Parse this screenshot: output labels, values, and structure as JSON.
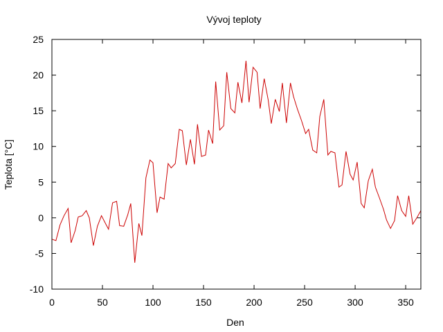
{
  "chart_data": {
    "type": "line",
    "title": "Vývoj teploty",
    "xlabel": "Den",
    "ylabel": "Teplota [°C]",
    "xlim": [
      0,
      365
    ],
    "ylim": [
      -10,
      25
    ],
    "x_ticks": [
      0,
      50,
      100,
      150,
      200,
      250,
      300,
      350
    ],
    "y_ticks": [
      -10,
      -5,
      0,
      5,
      10,
      15,
      20,
      25
    ],
    "grid": false,
    "legend": "none",
    "series": [
      {
        "color": "#cc0000",
        "x": [
          0,
          4,
          8,
          12,
          16,
          19,
          23,
          26,
          30,
          34,
          37,
          41,
          45,
          49,
          53,
          56,
          60,
          64,
          67,
          71,
          75,
          78,
          82,
          86,
          89,
          93,
          97,
          100,
          104,
          107,
          111,
          115,
          118,
          122,
          126,
          129,
          133,
          137,
          141,
          144,
          148,
          152,
          155,
          159,
          162,
          166,
          170,
          173,
          177,
          181,
          184,
          188,
          192,
          195,
          199,
          203,
          206,
          210,
          214,
          217,
          221,
          225,
          228,
          232,
          236,
          239,
          243,
          247,
          251,
          254,
          258,
          262,
          265,
          269,
          273,
          276,
          280,
          284,
          287,
          291,
          295,
          298,
          302,
          306,
          309,
          313,
          317,
          320,
          324,
          328,
          331,
          335,
          339,
          342,
          346,
          350,
          353,
          357,
          361,
          365
        ],
        "y": [
          -3.0,
          -3.2,
          -1.0,
          0.3,
          1.3,
          -3.5,
          -1.8,
          0.1,
          0.3,
          1.0,
          0.0,
          -3.9,
          -1.2,
          0.3,
          -0.8,
          -1.6,
          2.1,
          2.3,
          -1.1,
          -1.2,
          0.4,
          2.0,
          -6.3,
          -0.8,
          -2.5,
          5.6,
          8.1,
          7.7,
          0.7,
          2.9,
          2.6,
          7.6,
          7.0,
          7.6,
          12.4,
          12.2,
          7.4,
          11.0,
          7.5,
          13.1,
          8.6,
          8.8,
          12.3,
          10.4,
          19.1,
          12.3,
          12.9,
          20.4,
          15.3,
          14.7,
          19.0,
          16.1,
          22.0,
          16.2,
          21.1,
          20.4,
          15.3,
          19.5,
          16.5,
          13.2,
          16.6,
          14.9,
          18.9,
          13.3,
          18.9,
          17.0,
          15.2,
          13.6,
          11.8,
          12.4,
          9.5,
          9.1,
          14.2,
          16.6,
          8.8,
          9.3,
          9.1,
          4.3,
          4.6,
          9.3,
          6.1,
          5.3,
          7.8,
          2.0,
          1.4,
          5.2,
          6.8,
          4.3,
          2.8,
          1.2,
          -0.3,
          -1.5,
          -0.4,
          3.1,
          1.0,
          0.2,
          3.1,
          -0.9,
          0.0,
          1.0
        ]
      }
    ]
  }
}
